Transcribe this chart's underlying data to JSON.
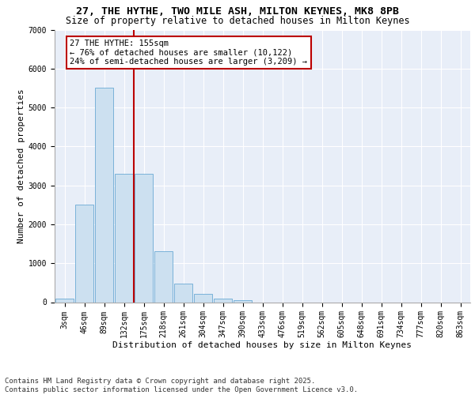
{
  "title_line1": "27, THE HYTHE, TWO MILE ASH, MILTON KEYNES, MK8 8PB",
  "title_line2": "Size of property relative to detached houses in Milton Keynes",
  "xlabel": "Distribution of detached houses by size in Milton Keynes",
  "ylabel": "Number of detached properties",
  "categories": [
    "3sqm",
    "46sqm",
    "89sqm",
    "132sqm",
    "175sqm",
    "218sqm",
    "261sqm",
    "304sqm",
    "347sqm",
    "390sqm",
    "433sqm",
    "476sqm",
    "519sqm",
    "562sqm",
    "605sqm",
    "648sqm",
    "691sqm",
    "734sqm",
    "777sqm",
    "820sqm",
    "863sqm"
  ],
  "values": [
    100,
    2500,
    5500,
    3300,
    3300,
    1300,
    480,
    220,
    90,
    60,
    0,
    0,
    0,
    0,
    0,
    0,
    0,
    0,
    0,
    0,
    0
  ],
  "bar_color": "#cce0f0",
  "bar_edge_color": "#6aaad4",
  "vline_x_idx": 3.5,
  "vline_color": "#bb0000",
  "annotation_text": "27 THE HYTHE: 155sqm\n← 76% of detached houses are smaller (10,122)\n24% of semi-detached houses are larger (3,209) →",
  "annotation_box_facecolor": "#ffffff",
  "annotation_box_edgecolor": "#bb0000",
  "ylim": [
    0,
    7000
  ],
  "yticks": [
    0,
    1000,
    2000,
    3000,
    4000,
    5000,
    6000,
    7000
  ],
  "background_color": "#e8eef8",
  "footer_line1": "Contains HM Land Registry data © Crown copyright and database right 2025.",
  "footer_line2": "Contains public sector information licensed under the Open Government Licence v3.0.",
  "title_fontsize": 9.5,
  "subtitle_fontsize": 8.5,
  "axis_label_fontsize": 8,
  "tick_fontsize": 7,
  "annotation_fontsize": 7.5,
  "footer_fontsize": 6.5
}
